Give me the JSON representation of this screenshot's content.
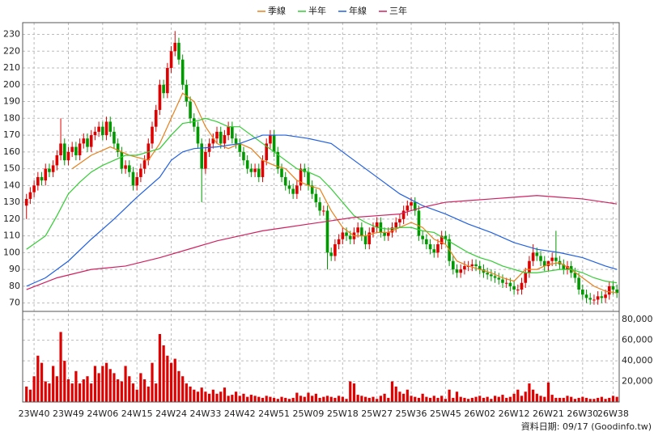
{
  "chart_data": {
    "type": "candlestick",
    "up_color": "#e00000",
    "down_color": "#009900",
    "grid": true,
    "xlim": [
      -3,
      153.6
    ],
    "xticks": [
      {
        "value": 0,
        "label": "23W40"
      },
      {
        "value": 9,
        "label": "23W49"
      },
      {
        "value": 18,
        "label": "24W06"
      },
      {
        "value": 27,
        "label": "24W15"
      },
      {
        "value": 36,
        "label": "24W24"
      },
      {
        "value": 45,
        "label": "24W33"
      },
      {
        "value": 54,
        "label": "24W42"
      },
      {
        "value": 63,
        "label": "24W51"
      },
      {
        "value": 72,
        "label": "25W09"
      },
      {
        "value": 81,
        "label": "25W18"
      },
      {
        "value": 90,
        "label": "25W27"
      },
      {
        "value": 99,
        "label": "25W36"
      },
      {
        "value": 108,
        "label": "25W45"
      },
      {
        "value": 117,
        "label": "26W02"
      },
      {
        "value": 126,
        "label": "26W12"
      },
      {
        "value": 135,
        "label": "26W21"
      },
      {
        "value": 144,
        "label": "26W30"
      },
      {
        "value": 152,
        "label": "26W38"
      }
    ],
    "ylim": [
      65,
      237
    ],
    "yticks": [
      70,
      80,
      90,
      100,
      110,
      120,
      130,
      140,
      150,
      160,
      170,
      180,
      190,
      200,
      210,
      220,
      230
    ],
    "x": [
      -2,
      -1,
      0,
      1,
      2,
      3,
      4,
      5,
      6,
      7,
      8,
      9,
      10,
      11,
      12,
      13,
      14,
      15,
      16,
      17,
      18,
      19,
      20,
      21,
      22,
      23,
      24,
      25,
      26,
      27,
      28,
      29,
      30,
      31,
      32,
      33,
      34,
      35,
      36,
      37,
      38,
      39,
      40,
      41,
      42,
      43,
      44,
      45,
      46,
      47,
      48,
      49,
      50,
      51,
      52,
      53,
      54,
      55,
      56,
      57,
      58,
      59,
      60,
      61,
      62,
      63,
      64,
      65,
      66,
      67,
      68,
      69,
      70,
      71,
      72,
      73,
      74,
      75,
      76,
      77,
      78,
      79,
      80,
      81,
      82,
      83,
      84,
      85,
      86,
      87,
      88,
      89,
      90,
      91,
      92,
      93,
      94,
      95,
      96,
      97,
      98,
      99,
      100,
      101,
      102,
      103,
      104,
      105,
      106,
      107,
      108,
      109,
      110,
      111,
      112,
      113,
      114,
      115,
      116,
      117,
      118,
      119,
      120,
      121,
      122,
      123,
      124,
      125,
      126,
      127,
      128,
      129,
      130,
      131,
      132,
      133,
      134,
      135,
      136,
      137,
      138,
      139,
      140,
      141,
      142,
      143,
      144,
      145,
      146,
      147,
      148,
      149,
      150,
      151,
      152,
      153
    ],
    "open": [
      128,
      132,
      136,
      140,
      145,
      143,
      150,
      148,
      152,
      158,
      165,
      155,
      160,
      163,
      158,
      165,
      168,
      163,
      170,
      172,
      175,
      170,
      178,
      172,
      165,
      160,
      150,
      152,
      148,
      140,
      145,
      150,
      155,
      165,
      175,
      185,
      200,
      195,
      210,
      220,
      225,
      215,
      200,
      190,
      180,
      175,
      165,
      150,
      160,
      165,
      168,
      172,
      165,
      170,
      175,
      168,
      165,
      160,
      155,
      150,
      148,
      150,
      145,
      155,
      165,
      170,
      160,
      150,
      145,
      140,
      138,
      135,
      140,
      150,
      148,
      140,
      135,
      130,
      125,
      125,
      100,
      98,
      105,
      108,
      112,
      110,
      108,
      112,
      115,
      110,
      105,
      112,
      115,
      118,
      112,
      110,
      112,
      115,
      118,
      120,
      125,
      128,
      130,
      125,
      110,
      108,
      105,
      102,
      100,
      105,
      110,
      108,
      95,
      90,
      88,
      90,
      92,
      92,
      93,
      92,
      90,
      88,
      87,
      86,
      85,
      84,
      82,
      82,
      80,
      78,
      78,
      82,
      88,
      95,
      100,
      98,
      95,
      92,
      95,
      97,
      95,
      93,
      90,
      92,
      88,
      85,
      78,
      75,
      73,
      72,
      72,
      74,
      73,
      75,
      80,
      78
    ],
    "high": [
      135,
      139,
      143,
      148,
      148,
      153,
      153,
      155,
      161,
      180,
      168,
      163,
      166,
      166,
      168,
      171,
      171,
      173,
      175,
      178,
      178,
      181,
      181,
      175,
      168,
      163,
      155,
      155,
      151,
      148,
      153,
      158,
      168,
      178,
      188,
      203,
      203,
      213,
      223,
      232,
      228,
      218,
      203,
      193,
      183,
      178,
      168,
      163,
      168,
      171,
      175,
      175,
      173,
      178,
      178,
      171,
      168,
      163,
      158,
      153,
      153,
      153,
      158,
      168,
      173,
      173,
      163,
      153,
      148,
      143,
      141,
      143,
      153,
      153,
      151,
      143,
      138,
      133,
      128,
      128,
      103,
      108,
      111,
      115,
      115,
      113,
      115,
      118,
      118,
      113,
      115,
      118,
      121,
      121,
      115,
      115,
      118,
      121,
      123,
      128,
      131,
      133,
      133,
      128,
      113,
      111,
      108,
      105,
      108,
      113,
      113,
      111,
      98,
      93,
      93,
      95,
      95,
      96,
      96,
      95,
      93,
      91,
      90,
      89,
      88,
      87,
      85,
      85,
      83,
      81,
      85,
      91,
      98,
      105,
      103,
      101,
      98,
      95,
      100,
      113,
      98,
      96,
      95,
      95,
      91,
      88,
      81,
      78,
      76,
      75,
      77,
      77,
      78,
      83,
      83,
      81
    ],
    "low": [
      120,
      129,
      133,
      137,
      140,
      140,
      145,
      145,
      149,
      155,
      152,
      152,
      157,
      155,
      155,
      162,
      160,
      160,
      167,
      169,
      167,
      167,
      169,
      162,
      157,
      147,
      147,
      145,
      137,
      137,
      142,
      147,
      152,
      162,
      172,
      182,
      192,
      192,
      207,
      217,
      212,
      197,
      187,
      177,
      172,
      162,
      130,
      147,
      157,
      162,
      165,
      162,
      162,
      167,
      165,
      162,
      157,
      152,
      147,
      145,
      145,
      142,
      142,
      152,
      162,
      157,
      147,
      142,
      137,
      135,
      132,
      132,
      137,
      145,
      137,
      132,
      127,
      122,
      122,
      90,
      95,
      95,
      102,
      105,
      107,
      105,
      105,
      109,
      107,
      102,
      102,
      109,
      112,
      109,
      107,
      107,
      109,
      112,
      115,
      117,
      122,
      125,
      122,
      107,
      105,
      102,
      99,
      97,
      97,
      102,
      105,
      92,
      87,
      85,
      85,
      87,
      89,
      89,
      89,
      87,
      85,
      84,
      83,
      82,
      81,
      79,
      79,
      77,
      75,
      75,
      75,
      79,
      85,
      92,
      95,
      92,
      89,
      89,
      92,
      92,
      90,
      87,
      87,
      85,
      82,
      75,
      72,
      70,
      69,
      69,
      69,
      70,
      70,
      72,
      75,
      73
    ],
    "close": [
      132,
      136,
      140,
      145,
      143,
      150,
      148,
      152,
      158,
      165,
      155,
      160,
      163,
      158,
      165,
      168,
      163,
      170,
      172,
      175,
      170,
      178,
      172,
      165,
      160,
      150,
      152,
      148,
      140,
      145,
      150,
      155,
      165,
      175,
      185,
      200,
      195,
      210,
      220,
      225,
      215,
      200,
      190,
      180,
      175,
      165,
      150,
      160,
      165,
      168,
      172,
      165,
      170,
      175,
      168,
      165,
      160,
      155,
      150,
      148,
      150,
      145,
      155,
      165,
      170,
      160,
      150,
      145,
      140,
      138,
      135,
      140,
      150,
      148,
      140,
      135,
      130,
      125,
      125,
      100,
      98,
      105,
      108,
      112,
      110,
      108,
      112,
      115,
      110,
      105,
      112,
      115,
      118,
      112,
      110,
      112,
      115,
      118,
      120,
      125,
      128,
      130,
      125,
      110,
      108,
      105,
      102,
      100,
      105,
      110,
      108,
      95,
      90,
      88,
      90,
      92,
      92,
      93,
      92,
      90,
      88,
      87,
      86,
      85,
      84,
      82,
      82,
      80,
      78,
      78,
      82,
      88,
      95,
      100,
      98,
      95,
      92,
      95,
      97,
      95,
      93,
      90,
      92,
      88,
      85,
      78,
      75,
      73,
      72,
      72,
      74,
      73,
      75,
      80,
      78,
      76
    ],
    "series": [
      {
        "name": "季線",
        "color": "#e8801a",
        "x": [
          10,
          15,
          20,
          25,
          30,
          33,
          36,
          39,
          42,
          45,
          48,
          51,
          54,
          57,
          60,
          63,
          66,
          69,
          72,
          75,
          78,
          81,
          84,
          87,
          90,
          93,
          96,
          99,
          102,
          105,
          108,
          111,
          114,
          117,
          120,
          123,
          126,
          129,
          132,
          135,
          138,
          141,
          144,
          147,
          150,
          153
        ],
        "values": [
          150,
          158,
          163,
          158,
          155,
          165,
          180,
          195,
          190,
          175,
          165,
          162,
          165,
          162,
          155,
          152,
          150,
          143,
          140,
          138,
          125,
          115,
          110,
          110,
          112,
          112,
          115,
          118,
          115,
          108,
          105,
          95,
          92,
          90,
          88,
          85,
          83,
          90,
          90,
          93,
          94,
          90,
          85,
          80,
          77,
          76
        ]
      },
      {
        "name": "半年",
        "color": "#33cc33",
        "x": [
          -2,
          3,
          6,
          9,
          12,
          15,
          18,
          21,
          24,
          27,
          30,
          33,
          36,
          39,
          42,
          45,
          48,
          51,
          54,
          57,
          60,
          63,
          66,
          69,
          72,
          75,
          78,
          81,
          84,
          87,
          90,
          93,
          96,
          99,
          102,
          105,
          108,
          111,
          114,
          117,
          120,
          123,
          126,
          129,
          132,
          135,
          138,
          141,
          144,
          147,
          150,
          153
        ],
        "values": [
          102,
          110,
          122,
          135,
          142,
          148,
          152,
          155,
          158,
          158,
          160,
          162,
          170,
          177,
          178,
          180,
          178,
          175,
          175,
          170,
          165,
          160,
          155,
          150,
          148,
          145,
          138,
          130,
          122,
          118,
          115,
          114,
          115,
          115,
          113,
          112,
          108,
          104,
          100,
          97,
          95,
          92,
          90,
          88,
          88,
          89,
          90,
          90,
          88,
          85,
          83,
          82
        ]
      },
      {
        "name": "年線",
        "color": "#2060e0",
        "x": [
          -2,
          3,
          9,
          15,
          21,
          27,
          33,
          36,
          39,
          42,
          48,
          54,
          60,
          66,
          72,
          78,
          84,
          90,
          96,
          102,
          108,
          114,
          120,
          126,
          132,
          138,
          144,
          150,
          153
        ],
        "values": [
          80,
          85,
          95,
          108,
          120,
          133,
          145,
          155,
          160,
          162,
          163,
          165,
          170,
          170,
          168,
          165,
          155,
          145,
          135,
          128,
          123,
          117,
          112,
          106,
          102,
          100,
          97,
          92,
          90
        ]
      },
      {
        "name": "三年",
        "color": "#d02060",
        "x": [
          -2,
          6,
          15,
          24,
          33,
          42,
          48,
          54,
          60,
          66,
          72,
          78,
          84,
          90,
          96,
          102,
          108,
          114,
          120,
          126,
          132,
          138,
          144,
          150,
          153
        ],
        "values": [
          78,
          85,
          90,
          92,
          97,
          103,
          107,
          110,
          113,
          115,
          117,
          119,
          121,
          122,
          123,
          127,
          130,
          131,
          132,
          133,
          134,
          133,
          132,
          130,
          129
        ]
      }
    ],
    "volume": {
      "color": "#e00000",
      "ylim": [
        0,
        88000
      ],
      "yticks": [
        {
          "value": 20000,
          "label": "20,000"
        },
        {
          "value": 40000,
          "label": "40,000"
        },
        {
          "value": 60000,
          "label": "60,000"
        },
        {
          "value": 80000,
          "label": "80,000"
        }
      ],
      "values": [
        15000,
        12000,
        25000,
        45000,
        38000,
        20000,
        18000,
        35000,
        25000,
        68000,
        40000,
        22000,
        18000,
        30000,
        18000,
        22000,
        25000,
        18000,
        35000,
        28000,
        35000,
        38000,
        32000,
        28000,
        22000,
        20000,
        35000,
        25000,
        18000,
        12000,
        28000,
        22000,
        15000,
        38000,
        18000,
        66000,
        55000,
        45000,
        38000,
        42000,
        30000,
        25000,
        18000,
        15000,
        12000,
        10000,
        14000,
        10000,
        8000,
        12000,
        8000,
        10000,
        14000,
        6000,
        7000,
        10000,
        6000,
        8000,
        5000,
        7000,
        6000,
        5000,
        4000,
        6000,
        5000,
        4000,
        3000,
        5000,
        4000,
        3000,
        4000,
        9000,
        6000,
        5000,
        9000,
        6000,
        8000,
        4000,
        5000,
        6000,
        5000,
        4000,
        6000,
        5000,
        3000,
        20000,
        18000,
        7000,
        6000,
        5000,
        4000,
        5000,
        3000,
        6000,
        8000,
        4000,
        20000,
        15000,
        10000,
        8000,
        12000,
        6000,
        5000,
        4000,
        8000,
        5000,
        4000,
        6000,
        4000,
        6000,
        3000,
        12000,
        4000,
        10000,
        5000,
        4000,
        3000,
        4000,
        5000,
        6000,
        4000,
        5000,
        3000,
        6000,
        5000,
        7000,
        4000,
        5000,
        8000,
        12000,
        6000,
        10000,
        18000,
        12000,
        8000,
        6000,
        5000,
        19000,
        7000,
        4000,
        4000,
        4000,
        6000,
        5000,
        3000,
        4000,
        5000,
        4000,
        3000,
        3000,
        4000,
        5000,
        3000,
        4000,
        6000,
        5000
      ]
    }
  },
  "source_note": "資料日期: 09/17 (Goodinfo.tw)"
}
